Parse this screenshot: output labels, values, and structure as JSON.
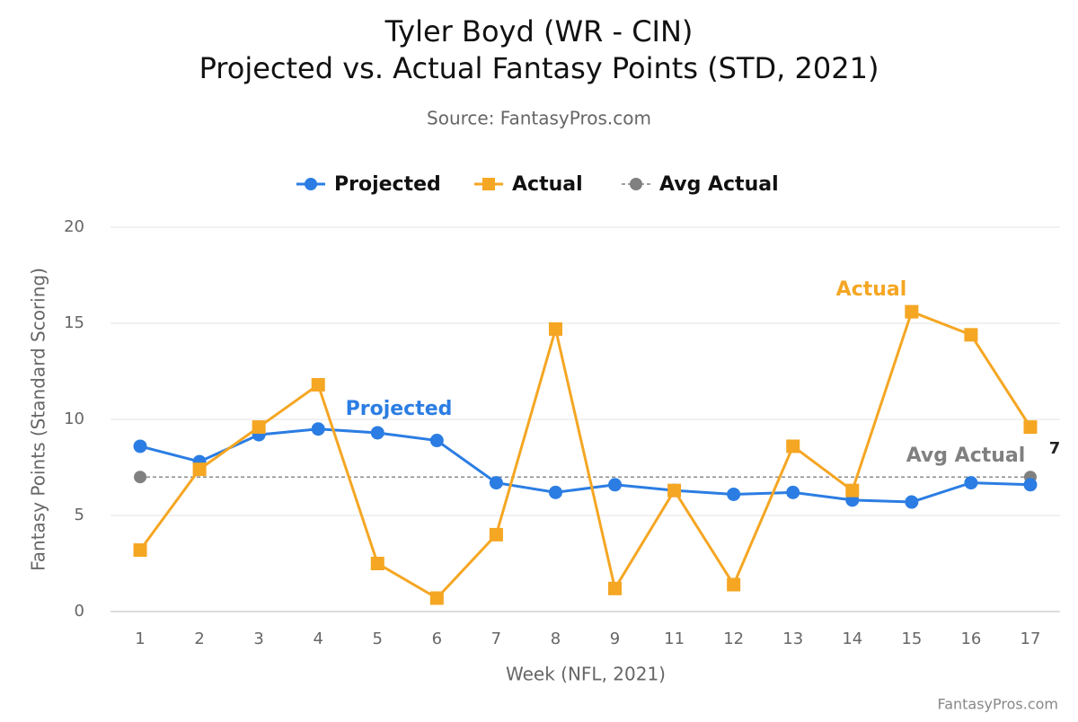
{
  "chart_data": {
    "type": "line",
    "title": [
      "Tyler Boyd (WR - CIN)",
      "Projected vs. Actual Fantasy Points (STD, 2021)"
    ],
    "subtitle": "Source: FantasyPros.com",
    "x_label": "Week (NFL, 2021)",
    "y_label": "Fantasy Points (Standard Scoring)",
    "credit": "FantasyPros.com",
    "categories": [
      "1",
      "2",
      "3",
      "4",
      "5",
      "6",
      "7",
      "8",
      "9",
      "11",
      "12",
      "13",
      "14",
      "15",
      "16",
      "17"
    ],
    "series": [
      {
        "name": "Projected",
        "color": "#2b7de3",
        "marker": "circle",
        "values": [
          8.6,
          7.8,
          9.2,
          9.5,
          9.3,
          8.9,
          6.7,
          6.2,
          6.6,
          6.3,
          6.1,
          6.2,
          5.8,
          5.7,
          6.7,
          6.6
        ]
      },
      {
        "name": "Actual",
        "color": "#f5a623",
        "marker": "square",
        "values": [
          3.2,
          7.4,
          9.6,
          11.8,
          2.5,
          0.7,
          4.0,
          14.7,
          1.2,
          6.3,
          1.4,
          8.6,
          6.3,
          15.6,
          14.4,
          9.6
        ]
      }
    ],
    "average": {
      "name": "Avg Actual",
      "color": "#808080",
      "value": 7
    },
    "ylim": [
      0,
      20
    ],
    "yticks": [
      0,
      5,
      10,
      15,
      20
    ],
    "grid": true,
    "legend": "top"
  }
}
